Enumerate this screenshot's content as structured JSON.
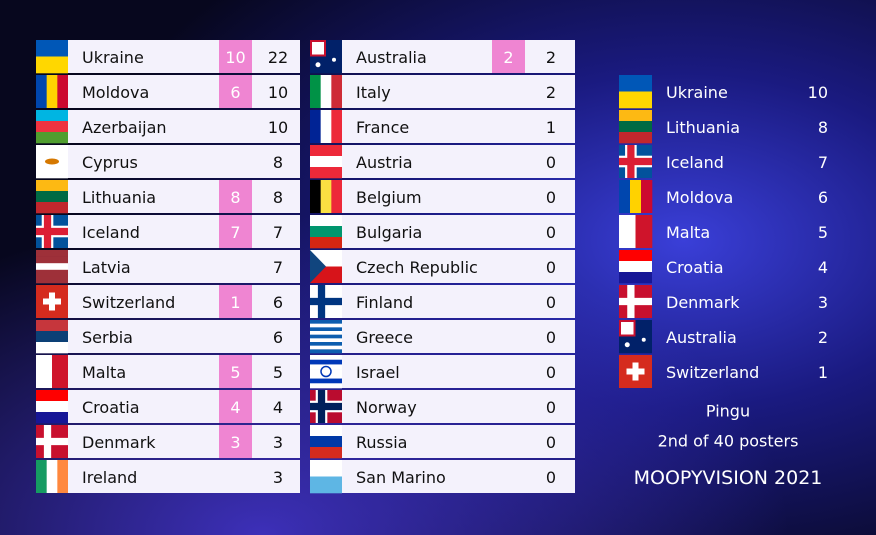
{
  "scoreboard": {
    "columns": [
      [
        {
          "country": "Ukraine",
          "given": 10,
          "total": 22
        },
        {
          "country": "Moldova",
          "given": 6,
          "total": 10
        },
        {
          "country": "Azerbaijan",
          "total": 10
        },
        {
          "country": "Cyprus",
          "total": 8
        },
        {
          "country": "Lithuania",
          "given": 8,
          "total": 8
        },
        {
          "country": "Iceland",
          "given": 7,
          "total": 7
        },
        {
          "country": "Latvia",
          "total": 7
        },
        {
          "country": "Switzerland",
          "given": 1,
          "total": 6
        },
        {
          "country": "Serbia",
          "total": 6
        },
        {
          "country": "Malta",
          "given": 5,
          "total": 5
        },
        {
          "country": "Croatia",
          "given": 4,
          "total": 4
        },
        {
          "country": "Denmark",
          "given": 3,
          "total": 3
        },
        {
          "country": "Ireland",
          "total": 3
        }
      ],
      [
        {
          "country": "Australia",
          "given": 2,
          "total": 2
        },
        {
          "country": "Italy",
          "total": 2
        },
        {
          "country": "France",
          "total": 1
        },
        {
          "country": "Austria",
          "total": 0
        },
        {
          "country": "Belgium",
          "total": 0
        },
        {
          "country": "Bulgaria",
          "total": 0
        },
        {
          "country": "Czech Republic",
          "total": 0
        },
        {
          "country": "Finland",
          "total": 0
        },
        {
          "country": "Greece",
          "total": 0
        },
        {
          "country": "Israel",
          "total": 0
        },
        {
          "country": "Norway",
          "total": 0
        },
        {
          "country": "Russia",
          "total": 0
        },
        {
          "country": "San Marino",
          "total": 0
        }
      ]
    ]
  },
  "ranking": [
    {
      "country": "Ukraine",
      "points": 10
    },
    {
      "country": "Lithuania",
      "points": 8
    },
    {
      "country": "Iceland",
      "points": 7
    },
    {
      "country": "Moldova",
      "points": 6
    },
    {
      "country": "Malta",
      "points": 5
    },
    {
      "country": "Croatia",
      "points": 4
    },
    {
      "country": "Denmark",
      "points": 3
    },
    {
      "country": "Australia",
      "points": 2
    },
    {
      "country": "Switzerland",
      "points": 1
    }
  ],
  "footer": {
    "name": "Pingu",
    "rank": "2nd of 40 posters",
    "title": "MOOPYVISION 2021"
  }
}
